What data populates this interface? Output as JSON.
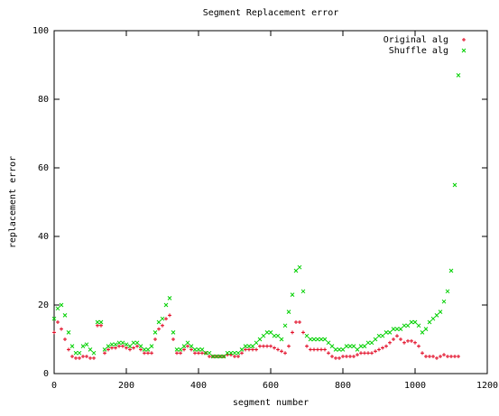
{
  "chart_data": {
    "type": "scatter",
    "title": "Segment Replacement error",
    "xlabel": "segment number",
    "ylabel": "replacement error",
    "xlim": [
      0,
      1200
    ],
    "xticks": [
      0,
      200,
      400,
      600,
      800,
      1000,
      1200
    ],
    "ylim": [
      0,
      100
    ],
    "yticks": [
      0,
      20,
      40,
      60,
      80,
      100
    ],
    "grid": false,
    "legend": "top-right",
    "x": [
      0,
      10,
      20,
      30,
      40,
      50,
      60,
      70,
      80,
      90,
      100,
      110,
      120,
      130,
      140,
      150,
      160,
      170,
      180,
      190,
      200,
      210,
      220,
      230,
      240,
      250,
      260,
      270,
      280,
      290,
      300,
      310,
      320,
      330,
      340,
      350,
      360,
      370,
      380,
      390,
      400,
      410,
      420,
      430,
      440,
      450,
      460,
      470,
      480,
      490,
      500,
      510,
      520,
      530,
      540,
      550,
      560,
      570,
      580,
      590,
      600,
      610,
      620,
      630,
      640,
      650,
      660,
      670,
      680,
      690,
      700,
      710,
      720,
      730,
      740,
      750,
      760,
      770,
      780,
      790,
      800,
      810,
      820,
      830,
      840,
      850,
      860,
      870,
      880,
      890,
      900,
      910,
      920,
      930,
      940,
      950,
      960,
      970,
      980,
      990,
      1000,
      1010,
      1020,
      1030,
      1040,
      1050,
      1060,
      1070,
      1080,
      1090,
      1100,
      1110,
      1120
    ],
    "series": [
      {
        "name": "Original alg",
        "color": "#e0001c",
        "marker": "plus",
        "values": [
          12,
          15,
          13,
          10,
          7,
          5,
          4.5,
          4.5,
          5,
          5,
          4.5,
          4.5,
          14,
          14,
          6,
          7,
          7.5,
          7.5,
          8,
          8,
          7.5,
          7,
          7.5,
          8,
          7,
          6,
          6,
          6,
          10,
          13,
          14,
          16,
          17,
          10,
          6,
          6,
          7,
          8,
          7,
          6,
          6,
          6,
          6,
          5,
          5,
          5,
          5,
          5,
          5.5,
          5.5,
          5,
          5,
          6,
          7,
          7,
          7,
          7,
          8,
          8,
          8,
          8,
          7.5,
          7,
          6.5,
          6,
          8,
          12,
          15,
          15,
          12,
          8,
          7,
          7,
          7,
          7,
          7,
          6,
          5,
          4.5,
          4.5,
          5,
          5,
          5,
          5,
          5.5,
          6,
          6,
          6,
          6,
          6.5,
          7,
          7.5,
          8,
          9,
          10,
          11,
          10,
          9,
          9.5,
          9.5,
          9,
          8,
          6,
          5,
          5,
          5,
          4.5,
          5,
          5.5,
          5,
          5,
          5,
          5
        ]
      },
      {
        "name": "Shuffle alg",
        "color": "#00d000",
        "marker": "cross",
        "values": [
          16,
          19,
          20,
          17,
          12,
          8,
          6,
          6,
          8,
          8.5,
          7,
          6,
          15,
          15,
          7,
          8,
          8.5,
          8.5,
          9,
          9,
          8.5,
          8,
          9,
          9,
          8,
          7,
          7,
          8,
          12,
          15,
          16,
          20,
          22,
          12,
          7,
          7,
          8,
          9,
          8,
          7,
          7,
          7,
          6,
          6,
          5,
          5,
          5,
          5,
          6,
          6,
          6,
          6,
          7,
          8,
          8,
          8,
          9,
          10,
          11,
          12,
          12,
          11,
          11,
          10,
          14,
          18,
          23,
          30,
          31,
          24,
          11,
          10,
          10,
          10,
          10,
          10,
          9,
          8,
          7,
          7,
          7,
          8,
          8,
          8,
          7,
          8,
          8,
          9,
          9,
          10,
          11,
          11,
          12,
          12,
          13,
          13,
          13,
          14,
          14,
          15,
          15,
          14,
          12,
          13,
          15,
          16,
          17,
          18,
          21,
          24,
          30,
          55,
          87
        ]
      }
    ]
  }
}
